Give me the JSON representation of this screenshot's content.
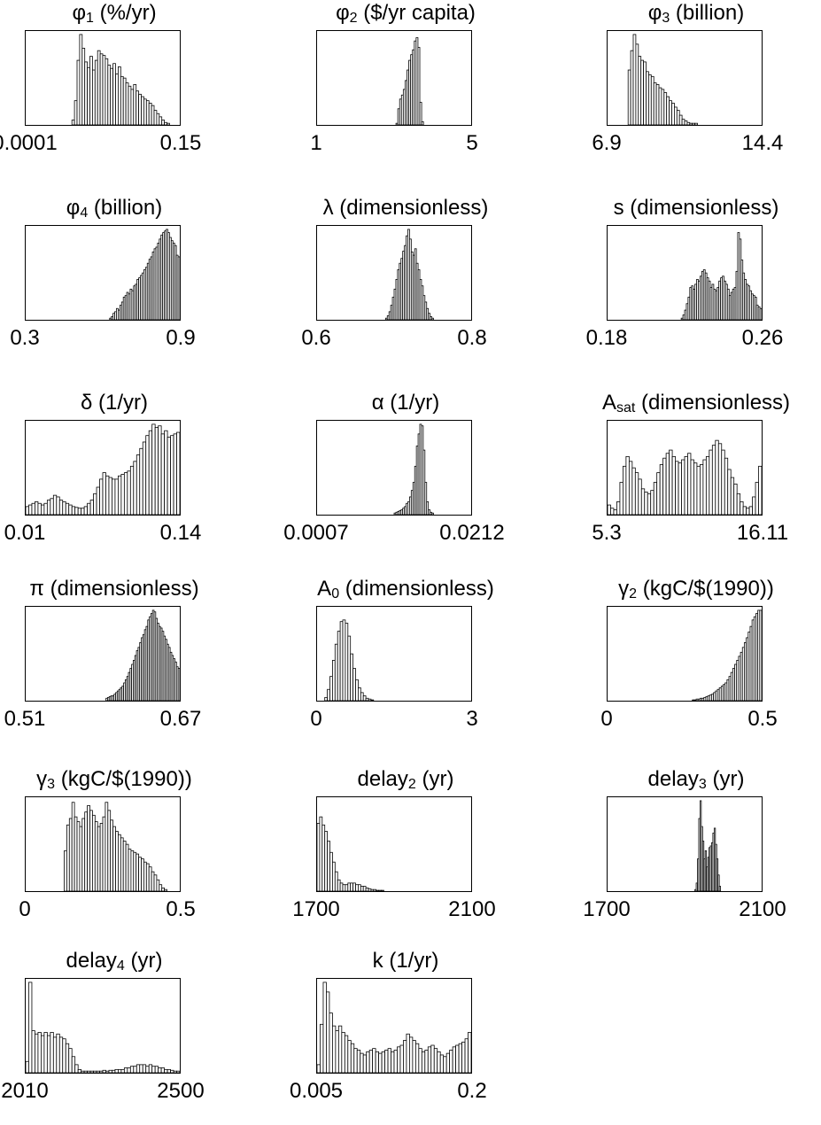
{
  "chart_data": [
    {
      "type": "bar",
      "symbol": "φ",
      "sub": "1",
      "unit": "(%/yr)",
      "xlim_labels": [
        "0.0001",
        "0.15"
      ],
      "counts": [
        0,
        0,
        0,
        0,
        0,
        0,
        0,
        0,
        0,
        0,
        0,
        0,
        0,
        0,
        0,
        0,
        0,
        0,
        6,
        30,
        80,
        112,
        95,
        78,
        71,
        85,
        68,
        80,
        92,
        88,
        86,
        82,
        74,
        70,
        76,
        63,
        72,
        60,
        58,
        52,
        48,
        44,
        50,
        42,
        38,
        35,
        32,
        30,
        27,
        24,
        18,
        14,
        10,
        6,
        3,
        2,
        0,
        0,
        0,
        0
      ]
    },
    {
      "type": "bar",
      "symbol": "φ",
      "sub": "2",
      "unit": "($/yr capita)",
      "xlim_labels": [
        "1",
        "5"
      ],
      "counts": [
        0,
        0,
        0,
        0,
        0,
        0,
        0,
        0,
        0,
        0,
        0,
        0,
        0,
        0,
        0,
        0,
        0,
        0,
        0,
        0,
        0,
        0,
        0,
        0,
        0,
        0,
        0,
        0,
        0,
        0,
        0,
        0,
        0,
        0,
        0,
        0,
        0,
        0,
        0,
        0,
        0,
        0,
        0,
        2,
        20,
        32,
        37,
        44,
        55,
        68,
        80,
        87,
        93,
        104,
        108,
        96,
        28,
        4,
        0,
        0,
        0,
        0,
        0,
        0,
        0,
        0,
        0,
        0,
        0,
        0,
        0,
        0,
        0,
        0,
        0,
        0,
        0,
        0,
        0,
        0,
        0,
        0,
        0,
        0
      ]
    },
    {
      "type": "bar",
      "symbol": "φ",
      "sub": "3",
      "unit": "(billion)",
      "xlim_labels": [
        "6.9",
        "14.4"
      ],
      "counts": [
        0,
        0,
        0,
        0,
        0,
        0,
        0,
        0,
        68,
        92,
        112,
        100,
        85,
        80,
        78,
        66,
        62,
        60,
        52,
        50,
        46,
        44,
        40,
        35,
        30,
        27,
        22,
        18,
        12,
        7,
        5,
        3,
        2,
        2,
        2,
        0,
        0,
        0,
        0,
        0,
        0,
        0,
        0,
        0,
        0,
        0,
        0,
        0,
        0,
        0,
        0,
        0,
        0,
        0,
        0,
        0,
        0,
        0,
        0,
        0
      ]
    },
    {
      "type": "bar",
      "symbol": "φ",
      "sub": "4",
      "unit": "(billion)",
      "xlim_labels": [
        "0.3",
        "0.9"
      ],
      "counts": [
        0,
        0,
        0,
        0,
        0,
        0,
        0,
        0,
        0,
        0,
        0,
        0,
        0,
        0,
        0,
        0,
        0,
        0,
        0,
        0,
        0,
        0,
        0,
        0,
        0,
        0,
        0,
        0,
        0,
        0,
        0,
        0,
        0,
        0,
        0,
        0,
        0,
        0,
        0,
        0,
        0,
        0,
        0,
        0,
        0,
        0,
        0,
        0,
        0,
        2,
        4,
        8,
        10,
        14,
        12,
        18,
        22,
        28,
        30,
        34,
        32,
        38,
        36,
        42,
        44,
        50,
        52,
        55,
        58,
        62,
        65,
        70,
        75,
        78,
        84,
        88,
        90,
        95,
        100,
        105,
        108,
        110,
        112,
        108,
        102,
        98,
        95,
        92,
        80,
        78
      ]
    },
    {
      "type": "bar",
      "symbol": "λ",
      "sub": "",
      "unit": "(dimensionless)",
      "xlim_labels": [
        "0.6",
        "0.8"
      ],
      "counts": [
        0,
        0,
        0,
        0,
        0,
        0,
        0,
        0,
        0,
        0,
        0,
        0,
        0,
        0,
        0,
        0,
        0,
        0,
        0,
        0,
        0,
        0,
        0,
        0,
        0,
        0,
        0,
        0,
        0,
        0,
        0,
        0,
        0,
        0,
        0,
        0,
        0,
        0,
        0,
        0,
        2,
        5,
        10,
        18,
        28,
        38,
        50,
        62,
        70,
        76,
        85,
        92,
        104,
        112,
        100,
        84,
        80,
        88,
        70,
        62,
        50,
        42,
        30,
        22,
        14,
        8,
        4,
        2,
        0,
        0,
        0,
        0,
        0,
        0,
        0,
        0,
        0,
        0,
        0,
        0,
        0,
        0,
        0,
        0,
        0,
        0,
        0,
        0,
        0,
        0
      ]
    },
    {
      "type": "bar",
      "symbol": "s",
      "sub": "",
      "unit": "(dimensionless)",
      "xlim_labels": [
        "0.18",
        "0.26"
      ],
      "counts": [
        0,
        0,
        0,
        0,
        0,
        0,
        0,
        0,
        0,
        0,
        0,
        0,
        0,
        0,
        0,
        0,
        0,
        0,
        0,
        0,
        0,
        0,
        0,
        0,
        0,
        0,
        0,
        0,
        0,
        0,
        0,
        0,
        0,
        0,
        0,
        0,
        0,
        0,
        0,
        0,
        0,
        0,
        0,
        2,
        6,
        12,
        20,
        28,
        40,
        42,
        38,
        44,
        50,
        48,
        54,
        60,
        62,
        58,
        52,
        48,
        40,
        44,
        38,
        36,
        40,
        48,
        52,
        54,
        48,
        44,
        38,
        30,
        34,
        38,
        40,
        60,
        108,
        100,
        74,
        58,
        50,
        44,
        42,
        36,
        32,
        30,
        28,
        18,
        16,
        14
      ]
    },
    {
      "type": "bar",
      "symbol": "δ",
      "sub": "",
      "unit": "(1/yr)",
      "xlim_labels": [
        "0.01",
        "0.14"
      ],
      "counts": [
        10,
        12,
        14,
        16,
        14,
        12,
        14,
        18,
        20,
        24,
        22,
        18,
        16,
        14,
        12,
        10,
        9,
        8,
        8,
        10,
        14,
        18,
        26,
        34,
        44,
        52,
        48,
        46,
        44,
        44,
        48,
        50,
        52,
        54,
        60,
        66,
        74,
        82,
        90,
        98,
        104,
        112,
        108,
        110,
        100,
        104,
        96,
        98,
        100,
        102
      ]
    },
    {
      "type": "bar",
      "symbol": "α",
      "sub": "",
      "unit": "(1/yr)",
      "xlim_labels": [
        "0.0007",
        "0.0212"
      ],
      "counts": [
        0,
        0,
        0,
        0,
        0,
        0,
        0,
        0,
        0,
        0,
        0,
        0,
        0,
        0,
        0,
        0,
        0,
        0,
        0,
        0,
        0,
        0,
        0,
        0,
        0,
        0,
        0,
        0,
        0,
        0,
        0,
        0,
        0,
        0,
        0,
        0,
        0,
        0,
        0,
        0,
        0,
        0,
        0,
        0,
        0,
        2,
        3,
        4,
        5,
        6,
        8,
        10,
        14,
        16,
        22,
        30,
        40,
        60,
        85,
        100,
        112,
        110,
        80,
        40,
        16,
        6,
        3,
        2,
        0,
        0,
        0,
        0,
        0,
        0,
        0,
        0,
        0,
        0,
        0,
        0,
        0,
        0,
        0,
        0,
        0,
        0,
        0,
        0,
        0,
        0
      ]
    },
    {
      "type": "bar",
      "symbol": "A",
      "sub": "sat",
      "unit": "(dimensionless)",
      "xlim_labels": [
        "5.3",
        "16.11"
      ],
      "counts": [
        12,
        8,
        6,
        16,
        40,
        60,
        72,
        66,
        58,
        52,
        44,
        32,
        28,
        26,
        30,
        40,
        52,
        62,
        70,
        76,
        80,
        72,
        66,
        64,
        68,
        72,
        76,
        68,
        64,
        60,
        62,
        68,
        72,
        80,
        86,
        92,
        88,
        80,
        70,
        56,
        46,
        38,
        26,
        16,
        10,
        8,
        10,
        22,
        40,
        60
      ]
    },
    {
      "type": "bar",
      "symbol": "π",
      "sub": "",
      "unit": "(dimensionless)",
      "xlim_labels": [
        "0.51",
        "0.67"
      ],
      "counts": [
        0,
        0,
        0,
        0,
        0,
        0,
        0,
        0,
        0,
        0,
        0,
        0,
        0,
        0,
        0,
        0,
        0,
        0,
        0,
        0,
        0,
        0,
        0,
        0,
        0,
        0,
        0,
        0,
        0,
        0,
        0,
        0,
        0,
        0,
        0,
        0,
        0,
        0,
        0,
        0,
        0,
        0,
        0,
        0,
        0,
        0,
        0,
        0,
        0,
        0,
        3,
        4,
        5,
        6,
        6,
        8,
        10,
        12,
        14,
        16,
        18,
        22,
        26,
        30,
        35,
        40,
        45,
        50,
        56,
        62,
        66,
        72,
        78,
        82,
        88,
        92,
        100,
        104,
        108,
        112,
        110,
        102,
        96,
        92,
        90,
        86,
        80,
        76,
        70,
        66,
        60,
        56,
        52,
        48,
        42,
        40
      ]
    },
    {
      "type": "bar",
      "symbol": "A",
      "sub": "0",
      "unit": "(dimensionless)",
      "xlim_labels": [
        "0",
        "3"
      ],
      "counts": [
        0,
        0,
        0,
        4,
        14,
        30,
        50,
        70,
        86,
        98,
        100,
        96,
        80,
        58,
        40,
        26,
        16,
        10,
        6,
        3,
        2,
        1,
        0,
        0,
        0,
        0,
        0,
        0,
        0,
        0,
        0,
        0,
        0,
        0,
        0,
        0,
        0,
        0,
        0,
        0,
        0,
        0,
        0,
        0,
        0,
        0,
        0,
        0,
        0,
        0,
        0,
        0,
        0,
        0,
        0,
        0,
        0,
        0,
        0,
        0
      ]
    },
    {
      "type": "bar",
      "symbol": "γ",
      "sub": "2",
      "unit": "(kgC/$(1990))",
      "xlim_labels": [
        "0",
        "0.5"
      ],
      "counts": [
        0,
        0,
        0,
        0,
        0,
        0,
        0,
        0,
        0,
        0,
        0,
        0,
        0,
        0,
        0,
        0,
        0,
        0,
        0,
        0,
        0,
        0,
        0,
        0,
        0,
        0,
        0,
        0,
        0,
        0,
        0,
        0,
        0,
        0,
        0,
        0,
        0,
        0,
        0,
        0,
        0,
        0,
        0,
        0,
        1,
        1,
        2,
        2,
        3,
        3,
        4,
        5,
        6,
        7,
        8,
        10,
        12,
        14,
        16,
        18,
        20,
        22,
        26,
        30,
        35,
        40,
        45,
        50,
        55,
        60,
        66,
        72,
        78,
        85,
        92,
        100,
        104,
        108,
        112,
        112
      ]
    },
    {
      "type": "bar",
      "symbol": "γ",
      "sub": "3",
      "unit": "(kgC/$(1990))",
      "xlim_labels": [
        "0",
        "0.5"
      ],
      "counts": [
        0,
        0,
        0,
        0,
        0,
        0,
        0,
        0,
        0,
        0,
        0,
        0,
        0,
        0,
        0,
        50,
        82,
        90,
        110,
        92,
        86,
        80,
        90,
        98,
        106,
        100,
        94,
        86,
        80,
        84,
        92,
        110,
        100,
        88,
        80,
        74,
        70,
        66,
        62,
        58,
        52,
        50,
        48,
        46,
        42,
        40,
        36,
        34,
        30,
        24,
        20,
        14,
        8,
        4,
        2,
        0,
        0,
        0,
        0,
        0
      ]
    },
    {
      "type": "bar",
      "symbol": "delay",
      "sub": "2",
      "unit": "(yr)",
      "xlim_labels": [
        "1700",
        "2100"
      ],
      "counts": [
        84,
        92,
        82,
        74,
        62,
        48,
        36,
        24,
        14,
        10,
        8,
        8,
        10,
        10,
        10,
        8,
        8,
        6,
        6,
        4,
        3,
        2,
        2,
        1,
        1,
        1,
        0,
        0,
        0,
        0,
        0,
        0,
        0,
        0,
        0,
        0,
        0,
        0,
        0,
        0,
        0,
        0,
        0,
        0,
        0,
        0,
        0,
        0,
        0,
        0,
        0,
        0,
        0,
        0,
        0,
        0,
        0,
        0,
        0,
        0
      ]
    },
    {
      "type": "bar",
      "symbol": "delay",
      "sub": "3",
      "unit": "(yr)",
      "xlim_labels": [
        "1700",
        "2100"
      ],
      "counts": [
        0,
        0,
        0,
        0,
        0,
        0,
        0,
        0,
        0,
        0,
        0,
        0,
        0,
        0,
        0,
        0,
        0,
        0,
        0,
        0,
        0,
        0,
        0,
        0,
        0,
        0,
        0,
        0,
        0,
        0,
        0,
        0,
        0,
        0,
        0,
        0,
        0,
        0,
        0,
        0,
        0,
        0,
        0,
        0,
        0,
        0,
        0,
        0,
        0,
        0,
        0,
        0,
        0,
        0,
        0,
        0,
        0,
        0,
        0,
        0,
        0,
        0,
        0,
        0,
        0,
        0,
        0,
        0,
        2,
        10,
        40,
        90,
        112,
        80,
        62,
        40,
        50,
        30,
        42,
        54,
        56,
        60,
        72,
        78,
        58,
        40,
        20,
        6,
        0,
        0,
        0,
        0,
        0,
        0,
        0,
        0,
        0,
        0,
        0,
        0,
        0,
        0,
        0,
        0,
        0,
        0,
        0,
        0,
        0,
        0,
        0,
        0,
        0,
        0,
        0,
        0,
        0,
        0,
        0,
        0
      ]
    },
    {
      "type": "bar",
      "symbol": "delay",
      "sub": "4",
      "unit": "(yr)",
      "xlim_labels": [
        "2010",
        "2500"
      ],
      "counts": [
        14,
        112,
        52,
        48,
        50,
        46,
        50,
        46,
        50,
        44,
        48,
        44,
        42,
        36,
        30,
        20,
        10,
        4,
        2,
        2,
        2,
        2,
        2,
        2,
        2,
        3,
        2,
        3,
        3,
        4,
        4,
        4,
        6,
        6,
        8,
        8,
        10,
        10,
        10,
        8,
        10,
        8,
        8,
        6,
        6,
        4,
        4,
        3,
        2,
        2
      ]
    },
    {
      "type": "bar",
      "symbol": "k",
      "sub": "",
      "unit": "(1/yr)",
      "xlim_labels": [
        "0.005",
        "0.2"
      ],
      "counts": [
        10,
        60,
        112,
        100,
        74,
        58,
        52,
        58,
        50,
        46,
        40,
        36,
        30,
        28,
        24,
        22,
        26,
        28,
        30,
        26,
        24,
        26,
        28,
        30,
        26,
        28,
        32,
        34,
        40,
        48,
        44,
        40,
        36,
        30,
        26,
        28,
        32,
        34,
        30,
        26,
        22,
        20,
        24,
        28,
        32,
        34,
        36,
        38,
        42,
        50
      ]
    }
  ]
}
